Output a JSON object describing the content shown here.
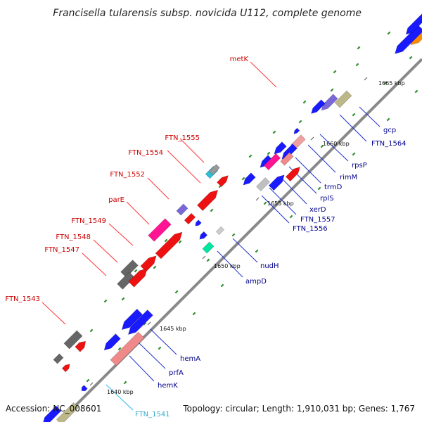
{
  "title": "Francisella tularensis subsp. novicida U112, complete genome",
  "footer": {
    "accession": "Accession: NC_008601",
    "summary": "Topology: circular; Length: 1,910,031 bp; Genes: 1,767"
  },
  "colors": {
    "backbone": "#8a8a8a",
    "label_forward": "#cc0000",
    "label_reverse": "#00008b",
    "label_rna": "#33aacc",
    "leader_forward": "#ff3333",
    "leader_reverse": "#2233cc",
    "leader_rna": "#33bbee",
    "gc_dots": "#2f8f2f"
  },
  "ticks": [
    {
      "label": "1640 kbp"
    },
    {
      "label": "1645 kbp"
    },
    {
      "label": "1650 kbp"
    },
    {
      "label": "1655 kbp"
    },
    {
      "label": "1660 kbp"
    },
    {
      "label": "1665 kbp"
    }
  ],
  "labels": [
    {
      "text": "metK",
      "strand": "forward"
    },
    {
      "text": "FTN_1555",
      "strand": "forward"
    },
    {
      "text": "FTN_1554",
      "strand": "forward"
    },
    {
      "text": "FTN_1552",
      "strand": "forward"
    },
    {
      "text": "parE",
      "strand": "forward"
    },
    {
      "text": "FTN_1549",
      "strand": "forward"
    },
    {
      "text": "FTN_1548",
      "strand": "forward"
    },
    {
      "text": "FTN_1547",
      "strand": "forward"
    },
    {
      "text": "FTN_1543",
      "strand": "forward"
    },
    {
      "text": "gcp",
      "strand": "reverse"
    },
    {
      "text": "FTN_1564",
      "strand": "reverse"
    },
    {
      "text": "rpsP",
      "strand": "reverse"
    },
    {
      "text": "rimM",
      "strand": "reverse"
    },
    {
      "text": "trmD",
      "strand": "reverse"
    },
    {
      "text": "rplS",
      "strand": "reverse"
    },
    {
      "text": "xerD",
      "strand": "reverse"
    },
    {
      "text": "FTN_1557",
      "strand": "reverse"
    },
    {
      "text": "FTN_1556",
      "strand": "reverse"
    },
    {
      "text": "nudH",
      "strand": "reverse"
    },
    {
      "text": "ampD",
      "strand": "reverse"
    },
    {
      "text": "hemA",
      "strand": "reverse"
    },
    {
      "text": "prfA",
      "strand": "reverse"
    },
    {
      "text": "hemK",
      "strand": "reverse"
    },
    {
      "text": "FTN_1541",
      "strand": "rna"
    }
  ],
  "features": [
    {
      "color": "#ff8c00",
      "dir": "reverse"
    },
    {
      "color": "#1a1aff",
      "dir": "reverse"
    },
    {
      "color": "#1a1aff",
      "dir": "reverse"
    },
    {
      "color": "#1a1aff",
      "dir": "forward"
    },
    {
      "color": "#ee1111",
      "dir": "forward"
    },
    {
      "color": "#bdb88a",
      "dir": "none"
    },
    {
      "color": "#7b68d8",
      "dir": "reverse"
    },
    {
      "color": "#1a1aff",
      "dir": "reverse"
    },
    {
      "color": "#1a1aff",
      "dir": "reverse"
    },
    {
      "color": "#f0a0a0",
      "dir": "none"
    },
    {
      "color": "#1a1aff",
      "dir": "reverse"
    },
    {
      "color": "#1a1aff",
      "dir": "reverse"
    },
    {
      "color": "#f08a8a",
      "dir": "none"
    },
    {
      "color": "#1a1aff",
      "dir": "reverse"
    },
    {
      "color": "#ff1493",
      "dir": "none"
    },
    {
      "color": "#1a1aff",
      "dir": "reverse"
    },
    {
      "color": "#c0c0c0",
      "dir": "none"
    },
    {
      "color": "#1a1aff",
      "dir": "reverse"
    },
    {
      "color": "#cccccc",
      "dir": "none"
    },
    {
      "color": "#1a1aff",
      "dir": "reverse"
    },
    {
      "color": "#00e5a0",
      "dir": "none"
    },
    {
      "color": "#2bbfd8",
      "dir": "none"
    },
    {
      "color": "#999999",
      "dir": "none"
    },
    {
      "color": "#ee1111",
      "dir": "forward"
    },
    {
      "color": "#ee1111",
      "dir": "forward"
    },
    {
      "color": "#7b68d8",
      "dir": "none"
    },
    {
      "color": "#ee1111",
      "dir": "none"
    },
    {
      "color": "#ff1493",
      "dir": "none"
    },
    {
      "color": "#ee1111",
      "dir": "forward"
    },
    {
      "color": "#666666",
      "dir": "none"
    },
    {
      "color": "#666666",
      "dir": "none"
    },
    {
      "color": "#ee1111",
      "dir": "forward"
    },
    {
      "color": "#ee1111",
      "dir": "forward"
    },
    {
      "color": "#1a1aff",
      "dir": "reverse"
    },
    {
      "color": "#1a1aff",
      "dir": "reverse"
    },
    {
      "color": "#f08a8a",
      "dir": "none"
    },
    {
      "color": "#1a1aff",
      "dir": "reverse"
    },
    {
      "color": "#666666",
      "dir": "none"
    },
    {
      "color": "#ee1111",
      "dir": "forward"
    },
    {
      "color": "#666666",
      "dir": "none"
    },
    {
      "color": "#ee1111",
      "dir": "forward"
    },
    {
      "color": "#1a1aff",
      "dir": "reverse"
    },
    {
      "color": "#bdb88a",
      "dir": "none"
    },
    {
      "color": "#1a1aff",
      "dir": "reverse"
    }
  ]
}
